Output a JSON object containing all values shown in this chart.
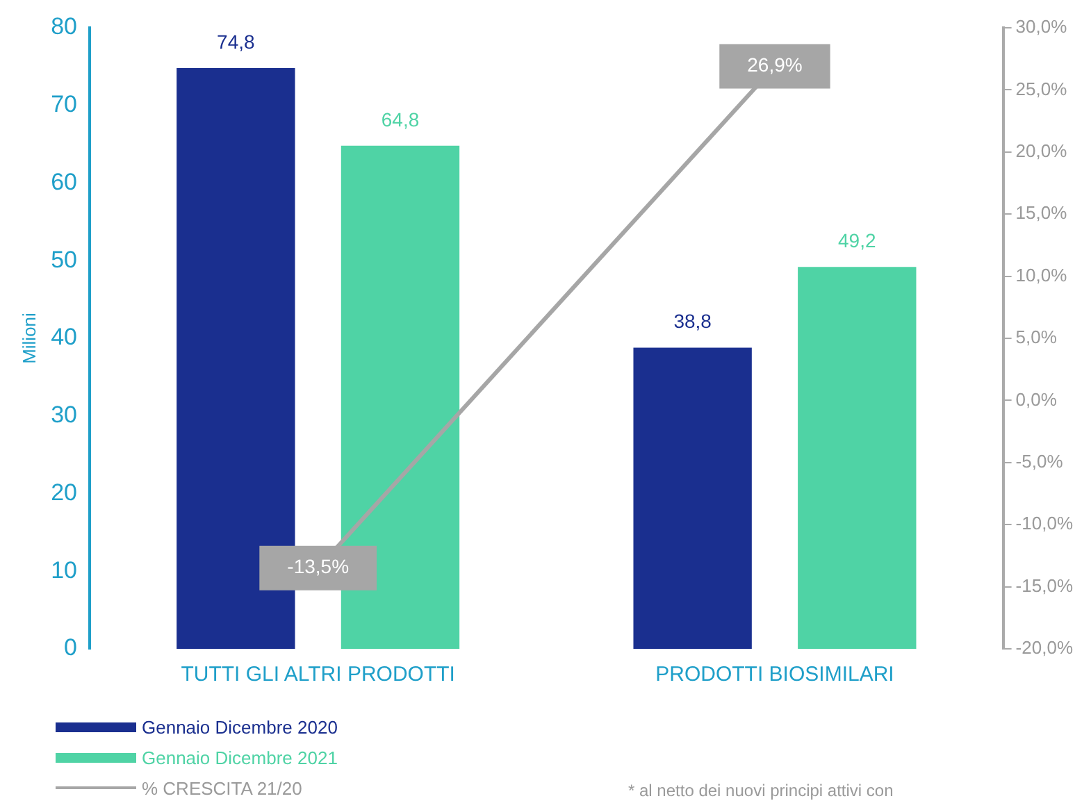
{
  "chart_data": {
    "type": "bar",
    "ylabel": "Milioni",
    "categories": [
      "TUTTI GLI ALTRI PRODOTTI",
      "PRODOTTI BIOSIMILARI"
    ],
    "series": [
      {
        "name": "Gennaio Dicembre 2020",
        "color": "#1a2f8f",
        "values": [
          74.8,
          38.8
        ],
        "value_labels": [
          "74,8",
          "38,8"
        ]
      },
      {
        "name": "Gennaio Dicembre 2021",
        "color": "#4fd3a5",
        "values": [
          64.8,
          49.2
        ],
        "value_labels": [
          "64,8",
          "49,2"
        ]
      },
      {
        "name": "% CRESCITA 21/20",
        "type": "line",
        "axis": "y2",
        "color": "#a6a6a6",
        "values": [
          -13.5,
          26.9
        ],
        "value_labels": [
          "-13,5%",
          "26,9%"
        ]
      }
    ],
    "ylim": [
      0,
      80
    ],
    "yticks": [
      0,
      10,
      20,
      30,
      40,
      50,
      60,
      70,
      80
    ],
    "y2lim": [
      -20,
      30
    ],
    "y2ticks": [
      {
        "value": -20,
        "label": "-20,0%"
      },
      {
        "value": -15,
        "label": "-15,0%"
      },
      {
        "value": -10,
        "label": "-10,0%"
      },
      {
        "value": -5,
        "label": "-5,0%"
      },
      {
        "value": 0,
        "label": "0,0%"
      },
      {
        "value": 5,
        "label": "5,0%"
      },
      {
        "value": 10,
        "label": "10,0%"
      },
      {
        "value": 15,
        "label": "15,0%"
      },
      {
        "value": 20,
        "label": "20,0%"
      },
      {
        "value": 25,
        "label": "25,0%"
      },
      {
        "value": 30,
        "label": "30,0%"
      }
    ],
    "grid": false,
    "legend": "bottom left",
    "annotations": [
      "* al netto dei nuovi principi attivi con"
    ]
  }
}
